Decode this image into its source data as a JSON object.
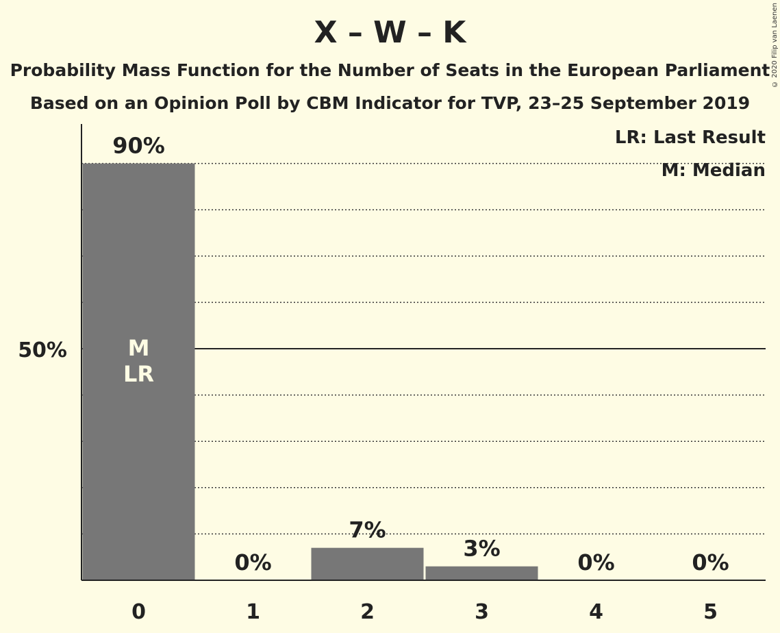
{
  "header": {
    "title": "X – W – K",
    "subtitle1": "Probability Mass Function for the Number of Seats in the European Parliament",
    "subtitle2": "Based on an Opinion Poll by CBM Indicator for TVP, 23–25 September 2019",
    "copyright": "© 2020 Filip van Laenen"
  },
  "legend": {
    "last_result": "LR: Last Result",
    "median": "M: Median"
  },
  "colors": {
    "background": "#fefce4",
    "bar": "#777777",
    "axis": "#222222",
    "inbar_text": "#fefce4"
  },
  "chart_data": {
    "type": "bar",
    "title": "X – W – K",
    "categories": [
      "0",
      "1",
      "2",
      "3",
      "4",
      "5"
    ],
    "values": [
      90,
      0,
      7,
      3,
      0,
      0
    ],
    "value_labels": [
      "90%",
      "0%",
      "7%",
      "3%",
      "0%",
      "0%"
    ],
    "bar_markers": [
      "M\nLR",
      "",
      "",
      "",
      "",
      ""
    ],
    "y_tick_label": "50%",
    "y_tick_value": 50,
    "ylim": [
      0,
      100
    ],
    "grid": "dotted every 10%",
    "legend_position": "top-right"
  }
}
